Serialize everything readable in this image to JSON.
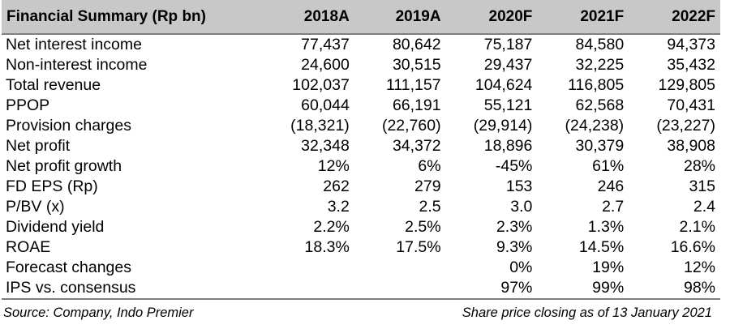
{
  "table": {
    "title": "Financial Summary (Rp bn)",
    "columns": [
      "2018A",
      "2019A",
      "2020F",
      "2021F",
      "2022F"
    ],
    "rows": [
      {
        "label": "Net interest income",
        "values": [
          "77,437",
          "80,642",
          "75,187",
          "84,580",
          "94,373"
        ]
      },
      {
        "label": "Non-interest income",
        "values": [
          "24,600",
          "30,515",
          "29,437",
          "32,225",
          "35,432"
        ]
      },
      {
        "label": "Total revenue",
        "values": [
          "102,037",
          "111,157",
          "104,624",
          "116,805",
          "129,805"
        ]
      },
      {
        "label": "PPOP",
        "values": [
          "60,044",
          "66,191",
          "55,121",
          "62,568",
          "70,431"
        ]
      },
      {
        "label": "Provision charges",
        "values": [
          "(18,321)",
          "(22,760)",
          "(29,914)",
          "(24,238)",
          "(23,227)"
        ]
      },
      {
        "label": "Net profit",
        "values": [
          "32,348",
          "34,372",
          "18,896",
          "30,379",
          "38,908"
        ]
      },
      {
        "label": "Net profit growth",
        "values": [
          "12%",
          "6%",
          "-45%",
          "61%",
          "28%"
        ]
      },
      {
        "label": "FD EPS (Rp)",
        "values": [
          "262",
          "279",
          "153",
          "246",
          "315"
        ]
      },
      {
        "label": "P/BV (x)",
        "values": [
          "3.2",
          "2.5",
          "3.0",
          "2.7",
          "2.4"
        ]
      },
      {
        "label": "Dividend yield",
        "values": [
          "2.2%",
          "2.5%",
          "2.3%",
          "1.3%",
          "2.1%"
        ]
      },
      {
        "label": "ROAE",
        "values": [
          "18.3%",
          "17.5%",
          "9.3%",
          "14.5%",
          "16.6%"
        ]
      },
      {
        "label": "Forecast changes",
        "values": [
          "",
          "",
          "0%",
          "19%",
          "12%"
        ]
      },
      {
        "label": "IPS vs. consensus",
        "values": [
          "",
          "",
          "97%",
          "99%",
          "98%"
        ]
      }
    ]
  },
  "footer": {
    "source": "Source: Company, Indo Premier",
    "note": "Share price closing as of 13 January 2021"
  }
}
